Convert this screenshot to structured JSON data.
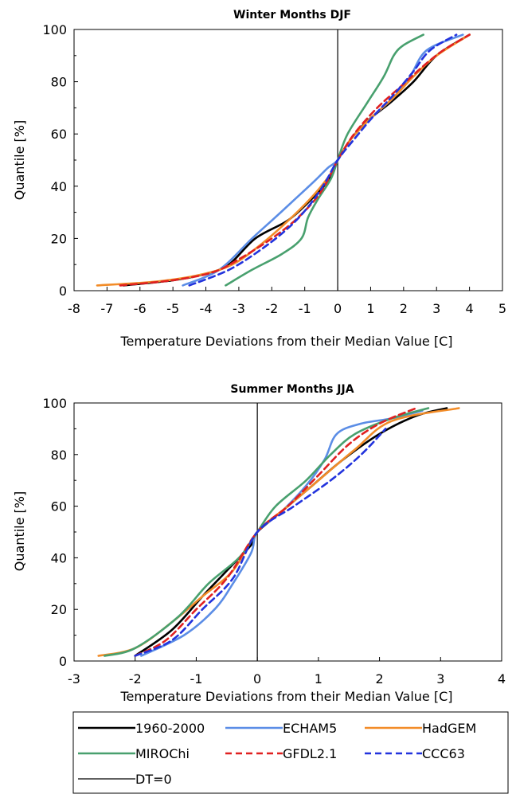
{
  "chart_data": [
    {
      "type": "line",
      "title": "Winter Months   DJF",
      "xlabel": "Temperature Deviations from their Median Value  [C]",
      "ylabel": "Quantile  [%]",
      "xlim": [
        -8,
        5
      ],
      "ylim": [
        0,
        100
      ],
      "xticks": [
        "-8",
        "-7",
        "-6",
        "-5",
        "-4",
        "-3",
        "-2",
        "-1",
        "0",
        "1",
        "2",
        "3",
        "4",
        "5"
      ],
      "yticks": [
        "0",
        "20",
        "40",
        "60",
        "80",
        "100"
      ],
      "grid": false,
      "reference_line_x": 0,
      "series": [
        {
          "name": "1960-2000",
          "color": "#000000",
          "dash": "solid",
          "width": 2.6,
          "x": [
            -6.5,
            -5,
            -4,
            -3.3,
            -2.5,
            -1.5,
            -0.8,
            -0.3,
            0,
            0.4,
            0.9,
            1.6,
            2.3,
            3,
            4
          ],
          "y": [
            2,
            4,
            6.5,
            10,
            20,
            27,
            35,
            42,
            50,
            58,
            65,
            72,
            80,
            90,
            98
          ]
        },
        {
          "name": "ECHAM5",
          "color": "#5b8de6",
          "dash": "solid",
          "width": 2.6,
          "x": [
            -4.7,
            -3.6,
            -2.6,
            -1.9,
            -1.3,
            -0.7,
            -0.3,
            0,
            0.4,
            1,
            1.7,
            2.2,
            2.7,
            3.8
          ],
          "y": [
            2,
            8,
            20,
            28,
            35,
            42,
            47,
            50,
            58,
            66,
            74,
            82,
            92,
            98
          ]
        },
        {
          "name": "HadGEM",
          "color": "#f28c28",
          "dash": "solid",
          "width": 2.6,
          "x": [
            -7.3,
            -5.5,
            -4.2,
            -3.2,
            -2.3,
            -1.4,
            -0.7,
            -0.2,
            0,
            0.4,
            1,
            1.7,
            2.3,
            3,
            4
          ],
          "y": [
            2,
            3.5,
            6,
            10,
            18,
            28,
            37,
            45,
            50,
            58,
            66,
            74,
            82,
            90,
            98
          ]
        },
        {
          "name": "MIROChi",
          "color": "#48a06e",
          "dash": "solid",
          "width": 2.6,
          "x": [
            -3.4,
            -2.6,
            -1.7,
            -1.1,
            -0.9,
            -0.6,
            -0.2,
            0,
            0.3,
            0.9,
            1.4,
            1.7,
            2,
            2.6
          ],
          "y": [
            2,
            8,
            14,
            20,
            28,
            35,
            43,
            50,
            60,
            72,
            82,
            90,
            94,
            98
          ]
        },
        {
          "name": "GFDL2.1",
          "color": "#e02020",
          "dash": "dashed",
          "width": 2.6,
          "x": [
            -6.6,
            -5,
            -3.8,
            -3,
            -2,
            -1.2,
            -0.5,
            0,
            0.5,
            1.2,
            1.9,
            2.6,
            3.2,
            4
          ],
          "y": [
            2,
            4,
            7,
            12,
            20,
            28,
            38,
            50,
            60,
            70,
            78,
            86,
            92,
            98
          ]
        },
        {
          "name": "CCC63",
          "color": "#2233dd",
          "dash": "dashed",
          "width": 2.6,
          "x": [
            -4.5,
            -3.3,
            -2.3,
            -1.5,
            -0.9,
            -0.4,
            0,
            0.5,
            1.1,
            1.7,
            2.3,
            2.8,
            3.6
          ],
          "y": [
            2,
            8,
            16,
            24,
            32,
            41,
            50,
            58,
            67,
            75,
            84,
            92,
            98
          ]
        }
      ]
    },
    {
      "type": "line",
      "title": "Summer Months   JJA",
      "xlabel": "Temperature Deviations from their Median Value  [C]",
      "ylabel": "Quantile  [%]",
      "xlim": [
        -3,
        4
      ],
      "ylim": [
        0,
        100
      ],
      "xticks": [
        "-3",
        "-2",
        "-1",
        "0",
        "1",
        "2",
        "3",
        "4"
      ],
      "yticks": [
        "0",
        "20",
        "40",
        "60",
        "80",
        "100"
      ],
      "grid": false,
      "reference_line_x": 0,
      "series": [
        {
          "name": "1960-2000",
          "color": "#000000",
          "dash": "solid",
          "width": 2.6,
          "x": [
            -2,
            -1.4,
            -0.9,
            -0.5,
            -0.1,
            0,
            0.4,
            0.9,
            1.4,
            2,
            2.6,
            3.1
          ],
          "y": [
            2,
            12,
            25,
            35,
            45,
            50,
            58,
            68,
            78,
            88,
            95,
            98
          ]
        },
        {
          "name": "ECHAM5",
          "color": "#5b8de6",
          "dash": "solid",
          "width": 2.6,
          "x": [
            -1.9,
            -1.2,
            -0.7,
            -0.4,
            -0.1,
            0,
            0.4,
            0.8,
            1.1,
            1.3,
            1.7,
            2.2,
            2.7
          ],
          "y": [
            2,
            10,
            20,
            30,
            42,
            50,
            58,
            68,
            78,
            88,
            92,
            94,
            97
          ]
        },
        {
          "name": "HadGEM",
          "color": "#f28c28",
          "dash": "solid",
          "width": 2.6,
          "x": [
            -2.6,
            -2,
            -1.4,
            -0.9,
            -0.4,
            0,
            0.5,
            1,
            1.6,
            2.2,
            3.3
          ],
          "y": [
            2,
            5,
            15,
            25,
            35,
            50,
            60,
            70,
            82,
            93,
            98
          ]
        },
        {
          "name": "MIROChi",
          "color": "#48a06e",
          "dash": "solid",
          "width": 2.6,
          "x": [
            -2.5,
            -2,
            -1.3,
            -0.8,
            -0.3,
            0,
            0.3,
            0.8,
            1.2,
            1.6,
            2.2,
            2.8
          ],
          "y": [
            2,
            5,
            17,
            30,
            40,
            50,
            60,
            70,
            80,
            88,
            94,
            98
          ]
        },
        {
          "name": "GFDL2.1",
          "color": "#e02020",
          "dash": "dashed",
          "width": 2.6,
          "x": [
            -2,
            -1.5,
            -1,
            -0.5,
            0,
            0.5,
            1,
            1.5,
            2,
            2.6
          ],
          "y": [
            2,
            8,
            20,
            32,
            50,
            60,
            72,
            84,
            92,
            98
          ]
        },
        {
          "name": "CCC63",
          "color": "#2233dd",
          "dash": "dashed",
          "width": 2.6,
          "x": [
            -2,
            -1.4,
            -0.9,
            -0.4,
            0,
            0.6,
            1.2,
            1.7,
            2.1
          ],
          "y": [
            2,
            8,
            20,
            32,
            50,
            60,
            70,
            80,
            90
          ]
        }
      ]
    }
  ],
  "legend": {
    "items": [
      {
        "label": "1960-2000",
        "color": "#000000",
        "dash": "solid",
        "width": 2.6
      },
      {
        "label": "ECHAM5",
        "color": "#5b8de6",
        "dash": "solid",
        "width": 2.6
      },
      {
        "label": "HadGEM",
        "color": "#f28c28",
        "dash": "solid",
        "width": 2.6
      },
      {
        "label": "MIROChi",
        "color": "#48a06e",
        "dash": "solid",
        "width": 2.6
      },
      {
        "label": "GFDL2.1",
        "color": "#e02020",
        "dash": "dashed",
        "width": 2.6
      },
      {
        "label": "CCC63",
        "color": "#2233dd",
        "dash": "dashed",
        "width": 2.6
      },
      {
        "label": "DT=0",
        "color": "#000000",
        "dash": "solid",
        "width": 1.2
      }
    ]
  }
}
